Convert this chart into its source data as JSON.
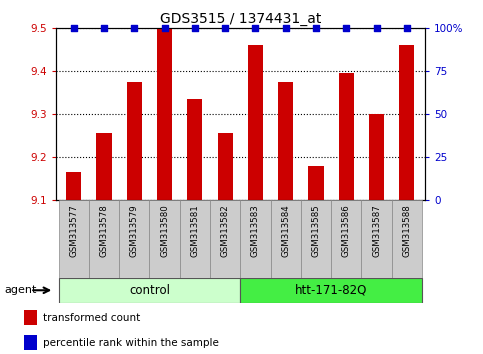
{
  "title": "GDS3515 / 1374431_at",
  "samples": [
    "GSM313577",
    "GSM313578",
    "GSM313579",
    "GSM313580",
    "GSM313581",
    "GSM313582",
    "GSM313583",
    "GSM313584",
    "GSM313585",
    "GSM313586",
    "GSM313587",
    "GSM313588"
  ],
  "bar_values": [
    9.165,
    9.255,
    9.375,
    9.5,
    9.335,
    9.255,
    9.46,
    9.375,
    9.18,
    9.395,
    9.3,
    9.46
  ],
  "percentile_values": [
    100,
    100,
    100,
    100,
    100,
    100,
    100,
    100,
    100,
    100,
    100,
    100
  ],
  "bar_color": "#cc0000",
  "percentile_color": "#0000cc",
  "ylim_left": [
    9.1,
    9.5
  ],
  "ylim_right": [
    0,
    100
  ],
  "yticks_left": [
    9.1,
    9.2,
    9.3,
    9.4,
    9.5
  ],
  "yticks_right": [
    0,
    25,
    50,
    75,
    100
  ],
  "ytick_labels_right": [
    "0",
    "25",
    "50",
    "75",
    "100%"
  ],
  "groups": [
    {
      "label": "control",
      "start": 0,
      "end": 5,
      "color": "#ccffcc"
    },
    {
      "label": "htt-171-82Q",
      "start": 6,
      "end": 11,
      "color": "#44ee44"
    }
  ],
  "agent_label": "agent",
  "legend_bar_label": "transformed count",
  "legend_dot_label": "percentile rank within the sample",
  "background_color": "#ffffff",
  "sample_box_color": "#cccccc",
  "plot_area_bg": "#ffffff"
}
